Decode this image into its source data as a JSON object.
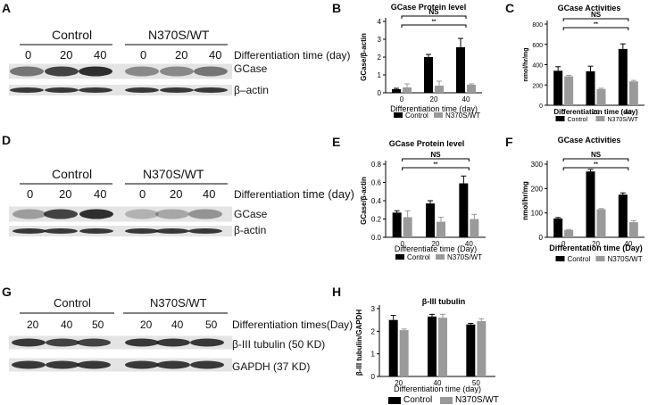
{
  "blots": [
    {
      "letter": "A",
      "group_labels": [
        "Control",
        "N370S/WT"
      ],
      "times": [
        "0",
        "20",
        "40",
        "0",
        "20",
        "40"
      ],
      "axis_label_parts": [
        "Differentiation time (day)",
        ""
      ],
      "band_labels": [
        "GCase",
        "β–actin"
      ],
      "band_intensity": {
        "GCase": [
          0.55,
          0.8,
          0.9,
          0.45,
          0.45,
          0.55
        ],
        "β–actin": [
          0.85,
          0.85,
          0.85,
          0.85,
          0.85,
          0.85
        ]
      }
    },
    {
      "letter": "D",
      "group_labels": [
        "Control",
        "N370S/WT"
      ],
      "times": [
        "0",
        "20",
        "40",
        "0",
        "20",
        "40"
      ],
      "axis_label_parts": [
        "Differentiation ",
        "time (day)"
      ],
      "band_labels": [
        "GCase",
        "β-actin"
      ],
      "band_intensity": {
        "GCase": [
          0.35,
          0.8,
          0.9,
          0.25,
          0.3,
          0.4
        ],
        "β-actin": [
          0.85,
          0.85,
          0.85,
          0.85,
          0.85,
          0.85
        ]
      }
    },
    {
      "letter": "G",
      "group_labels": [
        "Control",
        "N370S/WT"
      ],
      "times": [
        "20",
        "40",
        "50",
        "20",
        "40",
        "50"
      ],
      "axis_label_parts": [
        "Differentiation times(Day)",
        ""
      ],
      "band_labels": [
        "β-III tubulin (50 KD)",
        "GAPDH (37 KD)"
      ],
      "band_intensity": {
        "β-III tubulin (50 KD)": [
          0.85,
          0.8,
          0.8,
          0.85,
          0.85,
          0.85
        ],
        "GAPDH (37 KD)": [
          0.85,
          0.85,
          0.85,
          0.85,
          0.85,
          0.85
        ]
      }
    }
  ],
  "colors": {
    "control": "#000000",
    "mutant": "#9a9a9a",
    "blot_band": "#1a1a1a"
  },
  "chart_data": [
    {
      "panel": "B",
      "type": "bar",
      "title": "GCase Protein level",
      "xlabel": "Differentiation time (day)",
      "ylabel": "GCase/β-actin",
      "categories": [
        "0",
        "20",
        "40"
      ],
      "yticks": [
        "0",
        "1",
        "2",
        "3",
        "4"
      ],
      "ylim": [
        0,
        4
      ],
      "series": [
        {
          "name": "Control",
          "values": [
            0.2,
            2.0,
            2.55
          ],
          "errors": [
            0.05,
            0.15,
            0.5
          ]
        },
        {
          "name": "N370S/WT",
          "values": [
            0.3,
            0.4,
            0.45
          ],
          "errors": [
            0.2,
            0.25,
            0.05
          ]
        }
      ],
      "annotations": [
        {
          "text": "**",
          "from": "0",
          "to": "40"
        },
        {
          "text": "NS",
          "from": "0",
          "to": "40"
        }
      ]
    },
    {
      "panel": "C",
      "type": "bar",
      "title": "GCase Activities",
      "xlabel": "Differentiation time (day)",
      "ylabel": "nmol/hr/mg",
      "categories": [
        "0",
        "20",
        "40"
      ],
      "yticks": [
        "0",
        "200",
        "400",
        "600",
        "800"
      ],
      "ylim": [
        0,
        800
      ],
      "series": [
        {
          "name": "Control",
          "values": [
            340,
            335,
            555
          ],
          "errors": [
            40,
            50,
            50
          ]
        },
        {
          "name": "N370S/WT",
          "values": [
            285,
            160,
            235
          ],
          "errors": [
            10,
            8,
            10
          ]
        }
      ],
      "annotations": [
        {
          "text": "**",
          "from": "0",
          "to": "40"
        },
        {
          "text": "NS",
          "from": "0",
          "to": "40"
        }
      ]
    },
    {
      "panel": "E",
      "type": "bar",
      "title": "GCase Protein level",
      "xlabel": "Differentiate time (Day)",
      "ylabel": "GCase/β-actin",
      "categories": [
        "0",
        "20",
        "40"
      ],
      "yticks": [
        "0.0",
        "0.2",
        "0.4",
        "0.6",
        "0.8"
      ],
      "ylim": [
        0,
        0.8
      ],
      "series": [
        {
          "name": "Control",
          "values": [
            0.27,
            0.37,
            0.59
          ],
          "errors": [
            0.02,
            0.03,
            0.08
          ]
        },
        {
          "name": "N370S/WT",
          "values": [
            0.22,
            0.17,
            0.2
          ],
          "errors": [
            0.07,
            0.05,
            0.05
          ]
        }
      ],
      "annotations": [
        {
          "text": "**",
          "from": "0",
          "to": "40"
        },
        {
          "text": "NS",
          "from": "0",
          "to": "40"
        }
      ]
    },
    {
      "panel": "F",
      "type": "bar",
      "title": "GCase Activities",
      "xlabel": "Differentation time (Day)",
      "ylabel": "nmol/hr/mg",
      "categories": [
        "0",
        "20",
        "40"
      ],
      "yticks": [
        "0",
        "100",
        "200",
        "300"
      ],
      "ylim": [
        0,
        300
      ],
      "series": [
        {
          "name": "Control",
          "values": [
            77,
            270,
            175
          ],
          "errors": [
            4,
            8,
            7
          ]
        },
        {
          "name": "N370S/WT",
          "values": [
            30,
            115,
            62
          ],
          "errors": [
            2,
            3,
            6
          ]
        }
      ],
      "annotations": [
        {
          "text": "**",
          "from": "0",
          "to": "40"
        },
        {
          "text": "NS",
          "from": "0",
          "to": "40"
        }
      ]
    },
    {
      "panel": "H",
      "type": "bar",
      "title": "β-III tubulin",
      "xlabel": "Differentiation time (day)",
      "ylabel": "β-III tubulin/GAPDH",
      "categories": [
        "20",
        "40",
        "50"
      ],
      "yticks": [
        "0",
        "1",
        "2",
        "3"
      ],
      "ylim": [
        0,
        3
      ],
      "series": [
        {
          "name": "Control",
          "values": [
            2.5,
            2.65,
            2.3
          ],
          "errors": [
            0.2,
            0.1,
            0.05
          ]
        },
        {
          "name": "N370S/WT",
          "values": [
            2.05,
            2.6,
            2.45
          ],
          "errors": [
            0.05,
            0.15,
            0.1
          ]
        }
      ],
      "annotations": []
    }
  ]
}
